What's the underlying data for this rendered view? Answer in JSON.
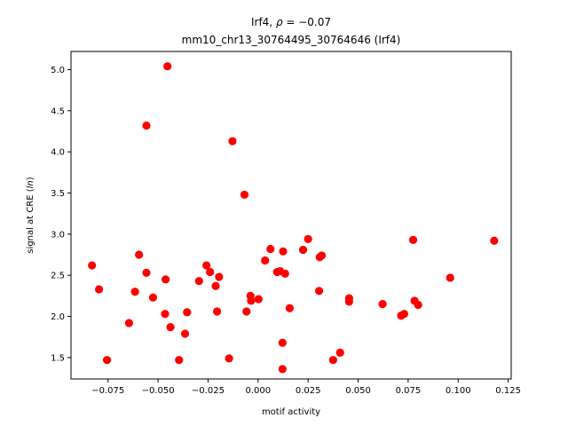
{
  "chart_data": {
    "type": "scatter",
    "title_line1": "Irf4, ",
    "title_rho_symbol": "ρ",
    "title_rho_value": " = −0.07",
    "title_line2": "mm10_chr13_30764495_30764646 (Irf4)",
    "xlabel": "motif activity",
    "ylabel_prefix": "signal at CRE (",
    "ylabel_italic": "ln",
    "ylabel_suffix": ")",
    "xlim": [
      -0.0935,
      0.1265
    ],
    "ylim": [
      1.24,
      5.22
    ],
    "xticks": [
      -0.075,
      -0.05,
      -0.025,
      0.0,
      0.025,
      0.05,
      0.075,
      0.1,
      0.125
    ],
    "xtick_labels": [
      "−0.075",
      "−0.050",
      "−0.025",
      "0.000",
      "0.025",
      "0.050",
      "0.075",
      "0.100",
      "0.125"
    ],
    "yticks": [
      1.5,
      2.0,
      2.5,
      3.0,
      3.5,
      4.0,
      4.5,
      5.0
    ],
    "ytick_labels": [
      "1.5",
      "2.0",
      "2.5",
      "3.0",
      "3.5",
      "4.0",
      "4.5",
      "5.0"
    ],
    "grid": false,
    "marker_color": "#ff0000",
    "points": [
      {
        "x": -0.083,
        "y": 2.62
      },
      {
        "x": -0.0795,
        "y": 2.33
      },
      {
        "x": -0.0755,
        "y": 1.47
      },
      {
        "x": -0.0645,
        "y": 1.92
      },
      {
        "x": -0.0615,
        "y": 2.3
      },
      {
        "x": -0.0595,
        "y": 2.75
      },
      {
        "x": -0.0558,
        "y": 2.53
      },
      {
        "x": -0.0558,
        "y": 4.32
      },
      {
        "x": -0.0525,
        "y": 2.23
      },
      {
        "x": -0.0465,
        "y": 2.03
      },
      {
        "x": -0.0462,
        "y": 2.45
      },
      {
        "x": -0.0453,
        "y": 5.04
      },
      {
        "x": -0.0438,
        "y": 1.87
      },
      {
        "x": -0.0395,
        "y": 1.47
      },
      {
        "x": -0.0365,
        "y": 1.79
      },
      {
        "x": -0.0355,
        "y": 2.05
      },
      {
        "x": -0.0295,
        "y": 2.43
      },
      {
        "x": -0.0258,
        "y": 2.62
      },
      {
        "x": -0.024,
        "y": 2.54
      },
      {
        "x": -0.0212,
        "y": 2.37
      },
      {
        "x": -0.0205,
        "y": 2.06
      },
      {
        "x": -0.0195,
        "y": 2.48
      },
      {
        "x": -0.0145,
        "y": 1.49
      },
      {
        "x": -0.0128,
        "y": 4.13
      },
      {
        "x": -0.0068,
        "y": 3.48
      },
      {
        "x": -0.0058,
        "y": 2.06
      },
      {
        "x": -0.0038,
        "y": 2.25
      },
      {
        "x": -0.0035,
        "y": 2.19
      },
      {
        "x": 0.0002,
        "y": 2.21
      },
      {
        "x": 0.0035,
        "y": 2.68
      },
      {
        "x": 0.0062,
        "y": 2.82
      },
      {
        "x": 0.0095,
        "y": 2.54
      },
      {
        "x": 0.011,
        "y": 2.55
      },
      {
        "x": 0.0122,
        "y": 1.68
      },
      {
        "x": 0.0122,
        "y": 1.36
      },
      {
        "x": 0.0125,
        "y": 2.79
      },
      {
        "x": 0.0135,
        "y": 2.52
      },
      {
        "x": 0.0158,
        "y": 2.1
      },
      {
        "x": 0.0225,
        "y": 2.81
      },
      {
        "x": 0.025,
        "y": 2.94
      },
      {
        "x": 0.0305,
        "y": 2.31
      },
      {
        "x": 0.0308,
        "y": 2.72
      },
      {
        "x": 0.0318,
        "y": 2.74
      },
      {
        "x": 0.0375,
        "y": 1.47
      },
      {
        "x": 0.041,
        "y": 1.56
      },
      {
        "x": 0.0455,
        "y": 2.22
      },
      {
        "x": 0.0455,
        "y": 2.18
      },
      {
        "x": 0.0622,
        "y": 2.15
      },
      {
        "x": 0.0715,
        "y": 2.01
      },
      {
        "x": 0.073,
        "y": 2.03
      },
      {
        "x": 0.0775,
        "y": 2.93
      },
      {
        "x": 0.0782,
        "y": 2.19
      },
      {
        "x": 0.08,
        "y": 2.14
      },
      {
        "x": 0.096,
        "y": 2.47
      },
      {
        "x": 0.118,
        "y": 2.92
      }
    ]
  }
}
